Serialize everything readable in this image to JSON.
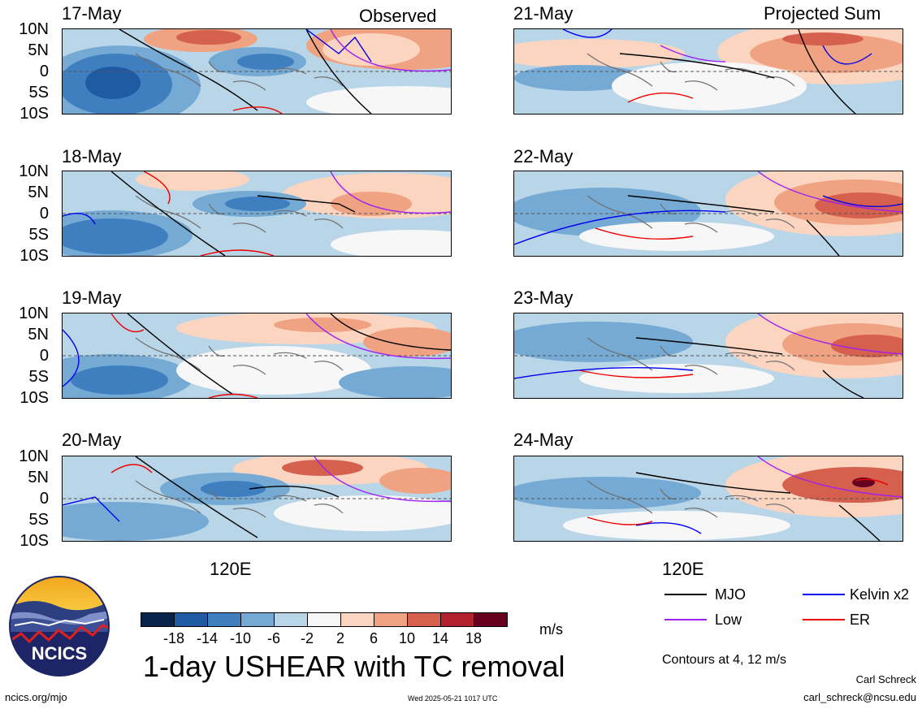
{
  "columns": {
    "left_label": "Observed",
    "right_label": "Projected Sum"
  },
  "latitude_labels": [
    "10N",
    "5N",
    "0",
    "5S",
    "10S"
  ],
  "longitude_label": "120E",
  "panels_left": [
    {
      "date": "17-May",
      "pattern": 0
    },
    {
      "date": "18-May",
      "pattern": 1
    },
    {
      "date": "19-May",
      "pattern": 2
    },
    {
      "date": "20-May",
      "pattern": 3
    }
  ],
  "panels_right": [
    {
      "date": "21-May",
      "pattern": 4
    },
    {
      "date": "22-May",
      "pattern": 5
    },
    {
      "date": "23-May",
      "pattern": 6
    },
    {
      "date": "24-May",
      "pattern": 7
    }
  ],
  "colorbar": {
    "ticks": [
      "-18",
      "-14",
      "-10",
      "-6",
      "-2",
      "2",
      "6",
      "10",
      "14",
      "18"
    ],
    "colors": [
      "#08244a",
      "#1f5aa2",
      "#3f7fc0",
      "#74aad4",
      "#b9d5e8",
      "#f7f7f7",
      "#fbd5c0",
      "#f0a382",
      "#d5604e",
      "#b1212e",
      "#67001f"
    ],
    "units": "m/s"
  },
  "legend": {
    "items": [
      {
        "label": "MJO",
        "color": "#000000"
      },
      {
        "label": "Kelvin x2",
        "color": "#0000ee"
      },
      {
        "label": "Low",
        "color": "#a020f0"
      },
      {
        "label": "ER",
        "color": "#ee0000"
      }
    ],
    "contours_note": "Contours at 4, 12 m/s"
  },
  "logo": {
    "text": "NCICS"
  },
  "title": "1-day USHEAR with TC removal",
  "footer": {
    "website": "ncics.org/mjo",
    "timestamp": "Wed 2025-05-21 1017 UTC",
    "author": "Carl Schreck",
    "email": "carl_schreck@ncsu.edu"
  }
}
